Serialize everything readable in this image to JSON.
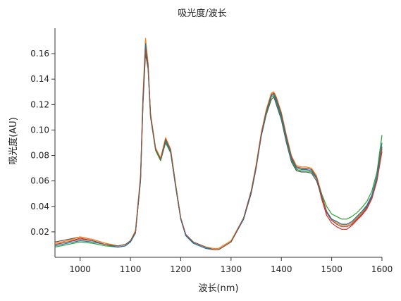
{
  "chart_data": {
    "type": "line",
    "title": "吸光度/波长",
    "xlabel": "波长(nm)",
    "ylabel": "吸光度(AU)",
    "xlim": [
      950,
      1600
    ],
    "ylim": [
      0,
      0.18
    ],
    "x_ticks": [
      1000,
      1100,
      1200,
      1300,
      1400,
      1500,
      1600
    ],
    "y_ticks": [
      0.02,
      0.04,
      0.06,
      0.08,
      0.1,
      0.12,
      0.14,
      0.16
    ],
    "x_tick_labels": [
      "1000",
      "1100",
      "1200",
      "1300",
      "1400",
      "1500",
      "1600"
    ],
    "y_tick_labels": [
      "0.02",
      "0.04",
      "0.06",
      "0.08",
      "0.10",
      "0.12",
      "0.14",
      "0.16"
    ],
    "grid": false,
    "legend": "none",
    "x": [
      950,
      975,
      1000,
      1025,
      1050,
      1075,
      1090,
      1100,
      1110,
      1120,
      1125,
      1130,
      1135,
      1140,
      1150,
      1160,
      1170,
      1180,
      1190,
      1200,
      1210,
      1225,
      1250,
      1265,
      1275,
      1300,
      1325,
      1340,
      1350,
      1360,
      1370,
      1380,
      1385,
      1390,
      1400,
      1410,
      1420,
      1430,
      1440,
      1450,
      1460,
      1470,
      1480,
      1490,
      1500,
      1510,
      1520,
      1530,
      1540,
      1550,
      1560,
      1570,
      1580,
      1590,
      1600
    ],
    "series": [
      {
        "color": "#555555",
        "values": [
          0.012,
          0.014,
          0.016,
          0.014,
          0.011,
          0.009,
          0.01,
          0.013,
          0.02,
          0.06,
          0.12,
          0.16,
          0.148,
          0.11,
          0.084,
          0.076,
          0.09,
          0.082,
          0.055,
          0.03,
          0.018,
          0.012,
          0.008,
          0.006,
          0.006,
          0.012,
          0.03,
          0.05,
          0.07,
          0.095,
          0.112,
          0.124,
          0.126,
          0.12,
          0.108,
          0.09,
          0.075,
          0.068,
          0.067,
          0.067,
          0.066,
          0.06,
          0.048,
          0.036,
          0.03,
          0.028,
          0.026,
          0.026,
          0.028,
          0.032,
          0.036,
          0.04,
          0.048,
          0.062,
          0.085
        ]
      },
      {
        "color": "#d62728",
        "values": [
          0.01,
          0.012,
          0.015,
          0.013,
          0.01,
          0.008,
          0.009,
          0.012,
          0.019,
          0.062,
          0.125,
          0.17,
          0.152,
          0.112,
          0.085,
          0.077,
          0.092,
          0.083,
          0.056,
          0.03,
          0.017,
          0.011,
          0.007,
          0.006,
          0.006,
          0.012,
          0.031,
          0.052,
          0.072,
          0.097,
          0.115,
          0.128,
          0.129,
          0.124,
          0.112,
          0.094,
          0.078,
          0.071,
          0.07,
          0.07,
          0.069,
          0.062,
          0.046,
          0.033,
          0.027,
          0.024,
          0.022,
          0.022,
          0.025,
          0.029,
          0.033,
          0.038,
          0.046,
          0.06,
          0.083
        ]
      },
      {
        "color": "#ff7f0e",
        "values": [
          0.011,
          0.013,
          0.016,
          0.014,
          0.011,
          0.009,
          0.01,
          0.013,
          0.021,
          0.064,
          0.128,
          0.172,
          0.153,
          0.113,
          0.086,
          0.078,
          0.094,
          0.085,
          0.057,
          0.031,
          0.018,
          0.012,
          0.008,
          0.007,
          0.007,
          0.013,
          0.031,
          0.052,
          0.073,
          0.098,
          0.116,
          0.129,
          0.13,
          0.126,
          0.114,
          0.096,
          0.08,
          0.072,
          0.071,
          0.071,
          0.07,
          0.064,
          0.05,
          0.036,
          0.03,
          0.027,
          0.025,
          0.025,
          0.027,
          0.031,
          0.035,
          0.039,
          0.047,
          0.062,
          0.086
        ]
      },
      {
        "color": "#2ca02c",
        "values": [
          0.008,
          0.01,
          0.012,
          0.011,
          0.009,
          0.008,
          0.009,
          0.012,
          0.019,
          0.06,
          0.122,
          0.166,
          0.15,
          0.111,
          0.084,
          0.076,
          0.091,
          0.082,
          0.055,
          0.03,
          0.017,
          0.011,
          0.007,
          0.006,
          0.006,
          0.012,
          0.03,
          0.051,
          0.071,
          0.096,
          0.113,
          0.126,
          0.127,
          0.122,
          0.11,
          0.092,
          0.076,
          0.069,
          0.068,
          0.068,
          0.067,
          0.062,
          0.05,
          0.04,
          0.034,
          0.032,
          0.03,
          0.03,
          0.032,
          0.035,
          0.039,
          0.044,
          0.052,
          0.067,
          0.096
        ]
      },
      {
        "color": "#1f77b4",
        "values": [
          0.009,
          0.011,
          0.013,
          0.012,
          0.01,
          0.008,
          0.009,
          0.012,
          0.019,
          0.061,
          0.123,
          0.168,
          0.15,
          0.111,
          0.085,
          0.077,
          0.092,
          0.083,
          0.056,
          0.03,
          0.017,
          0.011,
          0.007,
          0.006,
          0.006,
          0.012,
          0.03,
          0.051,
          0.071,
          0.096,
          0.114,
          0.127,
          0.128,
          0.123,
          0.111,
          0.093,
          0.077,
          0.07,
          0.069,
          0.069,
          0.068,
          0.062,
          0.048,
          0.036,
          0.03,
          0.028,
          0.026,
          0.026,
          0.028,
          0.032,
          0.036,
          0.041,
          0.049,
          0.064,
          0.09
        ]
      },
      {
        "color": "#8c564b",
        "values": [
          0.01,
          0.012,
          0.014,
          0.013,
          0.01,
          0.009,
          0.01,
          0.013,
          0.02,
          0.063,
          0.126,
          0.164,
          0.151,
          0.112,
          0.085,
          0.077,
          0.093,
          0.084,
          0.057,
          0.031,
          0.018,
          0.012,
          0.008,
          0.006,
          0.006,
          0.012,
          0.031,
          0.052,
          0.072,
          0.097,
          0.115,
          0.128,
          0.129,
          0.125,
          0.113,
          0.095,
          0.079,
          0.071,
          0.07,
          0.07,
          0.069,
          0.063,
          0.049,
          0.035,
          0.029,
          0.026,
          0.024,
          0.024,
          0.026,
          0.03,
          0.034,
          0.039,
          0.047,
          0.061,
          0.087
        ]
      }
    ]
  }
}
